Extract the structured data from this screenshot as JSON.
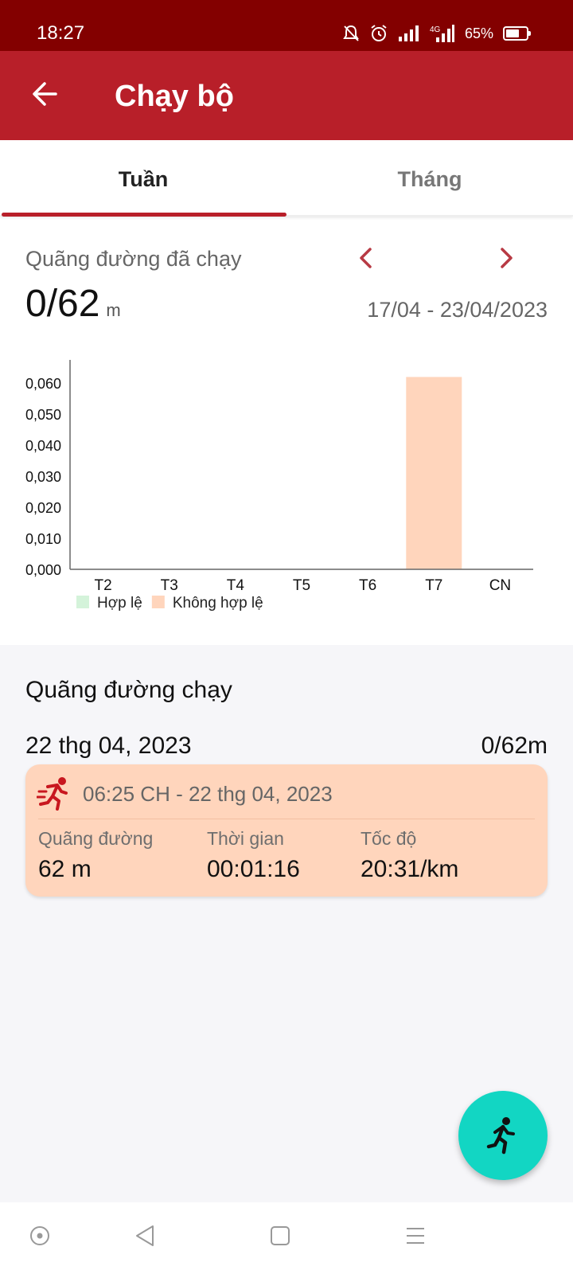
{
  "status_bar": {
    "time": "18:27",
    "battery_text": "65%",
    "battery_level": 0.65,
    "icons": [
      "mute-icon",
      "alarm-icon",
      "signal-icon",
      "4g-signal-icon",
      "battery-icon"
    ]
  },
  "app_bar": {
    "title": "Chạy bộ",
    "back_icon": "arrow-left-icon",
    "color": "#b81f29"
  },
  "tabs": [
    {
      "label": "Tuần",
      "selected": true
    },
    {
      "label": "Tháng",
      "selected": false
    }
  ],
  "summary": {
    "label": "Quãng đường đã chạy",
    "value": "0/62",
    "unit": "m",
    "date_range": "17/04 - 23/04/2023"
  },
  "chart_data": {
    "type": "bar",
    "stacked": true,
    "categories": [
      "T2",
      "T3",
      "T4",
      "T5",
      "T6",
      "T7",
      "CN"
    ],
    "series": [
      {
        "name": "Hợp lệ",
        "color": "#d4f3da",
        "values": [
          0,
          0,
          0,
          0,
          0,
          0,
          0
        ]
      },
      {
        "name": "Không hợp lệ",
        "color": "#ffd5bc",
        "values": [
          0,
          0,
          0,
          0,
          0,
          0.062,
          0
        ]
      }
    ],
    "yticks": [
      "0,000",
      "0,010",
      "0,020",
      "0,030",
      "0,040",
      "0,050",
      "0,060"
    ],
    "ylim": [
      0,
      0.0675
    ],
    "grid": false,
    "legend_position": "bottom-left"
  },
  "list": {
    "section_title": "Quãng đường chạy",
    "days": [
      {
        "date": "22 thg 04, 2023",
        "total": "0/62m",
        "runs": [
          {
            "time": "06:25 CH - 22 thg 04, 2023",
            "icon": "running-person-icon",
            "stats": [
              {
                "label": "Quãng đường",
                "value": "62 m"
              },
              {
                "label": "Thời gian",
                "value": "00:01:16"
              },
              {
                "label": "Tốc độ",
                "value": "20:31/km"
              }
            ]
          }
        ]
      }
    ]
  },
  "fab": {
    "icon": "running-person-icon",
    "color": "#12d6c3"
  },
  "system_nav": {
    "icons": [
      "assistant-icon",
      "back-triangle-icon",
      "home-square-icon",
      "menu-lines-icon"
    ]
  }
}
